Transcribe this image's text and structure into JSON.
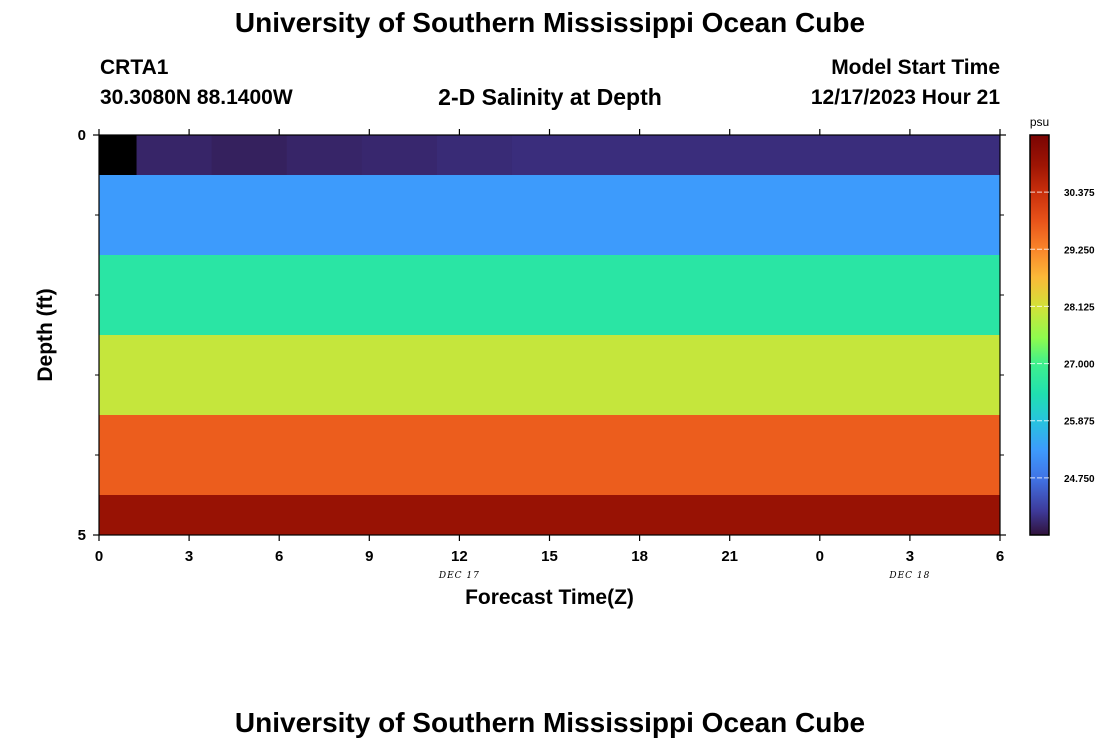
{
  "header": {
    "title": "University of Southern Mississippi Ocean Cube",
    "station_id": "CRTA1",
    "coordinates": "30.3080N  88.1400W",
    "plot_title": "2-D Salinity at Depth",
    "model_label": "Model Start Time",
    "model_time": "12/17/2023 Hour 21"
  },
  "footer": {
    "title": "University of Southern Mississippi Ocean Cube"
  },
  "chart_data": {
    "type": "heatmap",
    "title": "2-D Salinity at Depth",
    "xlabel": "Forecast Time(Z)",
    "ylabel": "Depth (ft)",
    "x_ticks": [
      "0",
      "3",
      "6",
      "9",
      "12",
      "15",
      "18",
      "21",
      "0",
      "3",
      "6"
    ],
    "x_hours": [
      0,
      3,
      6,
      9,
      12,
      15,
      18,
      21,
      24,
      27,
      30
    ],
    "x_range": [
      0,
      30
    ],
    "date_labels": [
      {
        "text": "DEC 17",
        "hour": 12
      },
      {
        "text": "DEC 18",
        "hour": 27
      }
    ],
    "y_ticks": [
      "0",
      "5"
    ],
    "y_range": [
      0,
      5
    ],
    "y_minor_ticks": [
      1,
      2,
      3,
      4
    ],
    "depth_layers": [
      {
        "from": 0,
        "to": 0.5,
        "salinity_by_hour": [
          {
            "from": 0,
            "to": 1.25,
            "value": 23.3
          },
          {
            "from": 1.25,
            "to": 3.75,
            "value": 23.85
          },
          {
            "from": 3.75,
            "to": 6.25,
            "value": 23.8
          },
          {
            "from": 6.25,
            "to": 8.75,
            "value": 23.85
          },
          {
            "from": 8.75,
            "to": 11.25,
            "value": 23.88
          },
          {
            "from": 11.25,
            "to": 13.75,
            "value": 23.92
          },
          {
            "from": 13.75,
            "to": 30,
            "value": 23.95
          }
        ]
      },
      {
        "from": 0.5,
        "to": 1.5,
        "value": 25.3
      },
      {
        "from": 1.5,
        "to": 2.5,
        "value": 26.6
      },
      {
        "from": 2.5,
        "to": 3.5,
        "value": 28.0
      },
      {
        "from": 3.5,
        "to": 4.5,
        "value": 29.7
      },
      {
        "from": 4.5,
        "to": 5.0,
        "value": 31.0
      }
    ],
    "colorbar": {
      "unit": "psu",
      "range": [
        23.625,
        31.5
      ],
      "tick_labels": [
        "30.375",
        "29.250",
        "28.125",
        "27.000",
        "25.875",
        "24.750"
      ],
      "tick_values": [
        30.375,
        29.25,
        28.125,
        27.0,
        25.875,
        24.75
      ],
      "color_stops": [
        {
          "value": 23.625,
          "color": "#30123b"
        },
        {
          "value": 24.1,
          "color": "#3e3a9a"
        },
        {
          "value": 24.75,
          "color": "#4174e6"
        },
        {
          "value": 25.3,
          "color": "#3d9bfc"
        },
        {
          "value": 25.875,
          "color": "#27c4de"
        },
        {
          "value": 26.4,
          "color": "#20e0b0"
        },
        {
          "value": 27.0,
          "color": "#3ff08c"
        },
        {
          "value": 27.5,
          "color": "#8efb4e"
        },
        {
          "value": 28.125,
          "color": "#d3e138"
        },
        {
          "value": 28.7,
          "color": "#fbb938"
        },
        {
          "value": 29.25,
          "color": "#f9852a"
        },
        {
          "value": 29.8,
          "color": "#e9541a"
        },
        {
          "value": 30.375,
          "color": "#c92f0c"
        },
        {
          "value": 30.9,
          "color": "#9e1504"
        },
        {
          "value": 31.5,
          "color": "#7a0403"
        }
      ],
      "below_min_color": "#000000"
    }
  }
}
